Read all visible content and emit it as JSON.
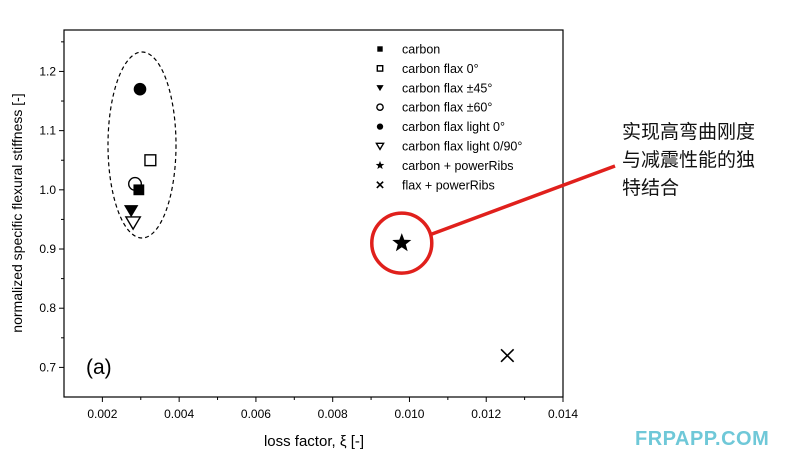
{
  "chart_data": {
    "type": "scatter",
    "xlabel": "loss factor, ξ [-]",
    "ylabel": "normalized specific flexural stiffness [-]",
    "xlim": [
      0.001,
      0.014
    ],
    "ylim": [
      0.65,
      1.27
    ],
    "xticks": [
      "0.002",
      "0.004",
      "0.006",
      "0.008",
      "0.010",
      "0.012",
      "0.014"
    ],
    "yticks": [
      "0.7",
      "0.8",
      "0.9",
      "1.0",
      "1.1",
      "1.2"
    ],
    "panel_label": "(a)",
    "grid": false,
    "legend_position": "top-right",
    "series": [
      {
        "name": "carbon",
        "marker": "filled-square",
        "x": [
          0.00295
        ],
        "y": [
          1.0
        ]
      },
      {
        "name": "carbon flax 0°",
        "marker": "open-square",
        "x": [
          0.00325
        ],
        "y": [
          1.05
        ]
      },
      {
        "name": "carbon flax ±45°",
        "marker": "filled-triangle-down",
        "x": [
          0.00275
        ],
        "y": [
          0.965
        ]
      },
      {
        "name": "carbon flax ±60°",
        "marker": "open-circle",
        "x": [
          0.00285
        ],
        "y": [
          1.01
        ]
      },
      {
        "name": "carbon flax light 0°",
        "marker": "filled-circle",
        "x": [
          0.00298
        ],
        "y": [
          1.17
        ]
      },
      {
        "name": "carbon flax light 0/90°",
        "marker": "open-triangle-down",
        "x": [
          0.0028
        ],
        "y": [
          0.945
        ]
      },
      {
        "name": "carbon + powerRibs",
        "marker": "star",
        "x": [
          0.0098
        ],
        "y": [
          0.91
        ]
      },
      {
        "name": "flax + powerRibs",
        "marker": "x",
        "x": [
          0.01255
        ],
        "y": [
          0.72
        ]
      }
    ],
    "annotation_text": "实现高弯曲刚度与减震性能的独特结合",
    "highlight_color": "#e0201c"
  },
  "annotation": {
    "line1": "实现高弯曲刚度",
    "line2": "与减震性能的独",
    "line3": "特结合"
  },
  "watermark": "FRPAPP.COM"
}
